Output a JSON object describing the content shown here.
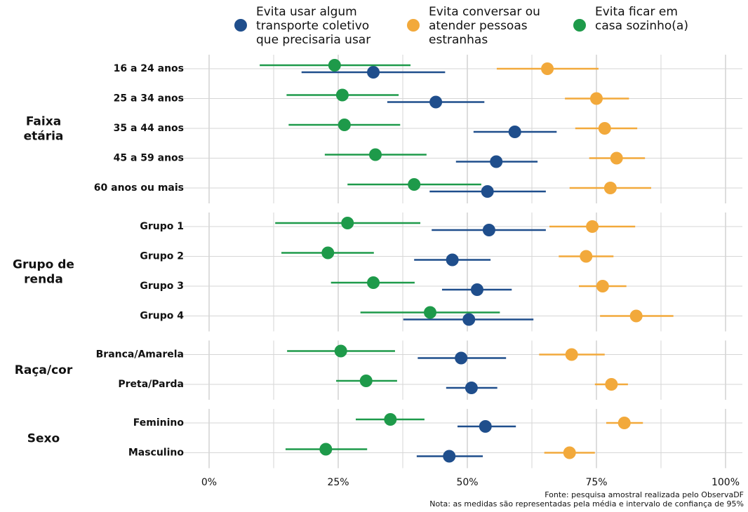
{
  "chart_data": {
    "type": "dot-whisker",
    "groups": [
      {
        "name": [
          "Faixa",
          "etária"
        ],
        "categories": [
          "16 a 24 anos",
          "25 a 34 anos",
          "35 a 44 anos",
          "45 a 59 anos",
          "60 anos ou mais"
        ]
      },
      {
        "name": [
          "Grupo de",
          "renda"
        ],
        "categories": [
          "Grupo 1",
          "Grupo 2",
          "Grupo 3",
          "Grupo 4"
        ]
      },
      {
        "name": [
          "Raça/cor"
        ],
        "categories": [
          "Branca/Amarela",
          "Preta/Parda"
        ]
      },
      {
        "name": [
          "Sexo"
        ],
        "categories": [
          "Feminino",
          "Masculino"
        ]
      }
    ],
    "series": [
      {
        "name": [
          "Evita usar algum",
          "transporte coletivo",
          "que precisaria usar"
        ],
        "color": "#1f4e8c",
        "values": [
          31.8,
          43.9,
          59.2,
          55.6,
          53.9,
          54.2,
          47.1,
          51.9,
          50.3,
          48.8,
          50.8,
          53.5,
          46.5
        ],
        "low": [
          17.9,
          34.5,
          51.2,
          47.8,
          42.7,
          43.1,
          39.7,
          45.1,
          37.6,
          40.4,
          45.9,
          48.1,
          40.2
        ],
        "high": [
          45.7,
          53.3,
          67.3,
          63.6,
          65.2,
          65.2,
          54.5,
          58.6,
          62.8,
          57.5,
          55.8,
          59.4,
          53
        ]
      },
      {
        "name": [
          "Evita conversar ou",
          "atender pessoas",
          "estranhas"
        ],
        "color": "#f2a93b",
        "values": [
          65.5,
          75,
          76.6,
          78.9,
          77.7,
          74.2,
          73,
          76.2,
          82.7,
          70.2,
          77.9,
          80.4,
          69.8
        ],
        "low": [
          55.7,
          68.9,
          70.9,
          73.6,
          69.8,
          65.9,
          67.7,
          71.6,
          75.7,
          63.9,
          74.7,
          76.9,
          64.9
        ],
        "high": [
          75.4,
          81.3,
          82.9,
          84.4,
          85.6,
          82.5,
          78.3,
          80.8,
          89.9,
          76.6,
          81.1,
          84,
          74.7
        ]
      },
      {
        "name": [
          "Evita ficar em",
          "casa sozinho(a)"
        ],
        "color": "#1e9a4a",
        "values": [
          24.3,
          25.8,
          26.2,
          32.2,
          39.7,
          26.8,
          23,
          31.8,
          42.8,
          25.5,
          30.4,
          35.1,
          22.6
        ],
        "low": [
          9.8,
          15,
          15.4,
          22.4,
          26.8,
          12.8,
          14,
          23.6,
          29.3,
          15.1,
          24.6,
          28.4,
          14.8
        ],
        "high": [
          39,
          36.7,
          37,
          42.1,
          52.7,
          40.9,
          31.9,
          39.8,
          56.3,
          36,
          36.4,
          41.7,
          30.6
        ]
      }
    ],
    "xlim": [
      0,
      100
    ],
    "xticks": [
      {
        "value": 0,
        "label": "0%"
      },
      {
        "value": 25,
        "label": "25%"
      },
      {
        "value": 50,
        "label": "50%"
      },
      {
        "value": 75,
        "label": "75%"
      },
      {
        "value": 100,
        "label": "100%"
      }
    ],
    "grid": true,
    "notes": [
      "Fonte: pesquisa amostral realizada pelo ObservaDF",
      "Nota: as medidas são representadas pela média e intervalo de confiança de 95%"
    ]
  }
}
